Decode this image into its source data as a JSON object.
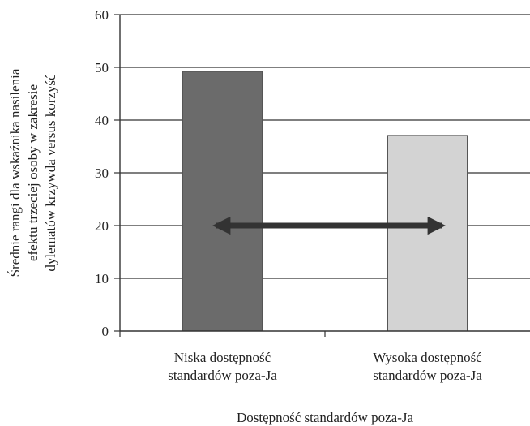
{
  "chart_data": {
    "type": "bar",
    "categories": [
      [
        "Niska dostępność",
        "standardów poza-Ja"
      ],
      [
        "Wysoka dostępność",
        "standardów poza-Ja"
      ]
    ],
    "values": [
      49.2,
      37.1
    ],
    "bar_colors": [
      "#6b6b6b",
      "#d3d3d3"
    ],
    "xlabel": "Dostępność standardów poza-Ja",
    "ylabel": [
      "Średnie rangi dla wskaźnika nasilenia",
      "efektu trzeciej osoby w zakresie",
      "dylematów krzywda versus korzyść"
    ],
    "ylim": [
      0,
      60
    ],
    "yticks": [
      0,
      10,
      20,
      30,
      40,
      50,
      60
    ],
    "grid": true,
    "annotation": {
      "type": "double-arrow",
      "y": 20,
      "from_category": 0,
      "to_category": 1
    }
  }
}
